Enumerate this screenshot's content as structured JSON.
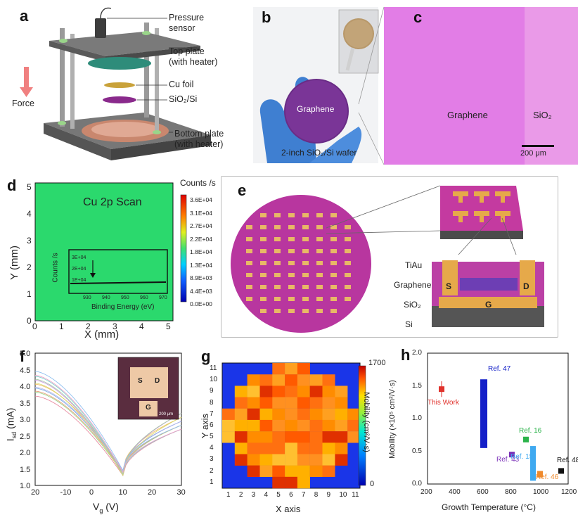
{
  "panel_letters": {
    "a": "a",
    "b": "b",
    "c": "c",
    "d": "d",
    "e": "e",
    "f": "f",
    "g": "g",
    "h": "h"
  },
  "panel_a": {
    "labels": {
      "pressure_sensor_1": "Pressure",
      "pressure_sensor_2": "sensor",
      "top_plate_1": "Top plate",
      "top_plate_2": "(with heater)",
      "cu_foil": "Cu foil",
      "sio2_si": "SiO₂/Si",
      "bottom_plate_1": "Bottom plate",
      "bottom_plate_2": "(with heater)",
      "force": "Force"
    }
  },
  "panel_b": {
    "graphene_label": "Graphene",
    "wafer_label": "2-inch SiO₂/Si wafer"
  },
  "panel_c": {
    "graphene_label": "Graphene",
    "sio2_label": "SiO₂",
    "scalebar": "200 μm"
  },
  "panel_d": {
    "title": "Cu 2p Scan",
    "xlabel": "X (mm)",
    "ylabel": "Y (mm)",
    "x_ticks": [
      "0",
      "1",
      "2",
      "3",
      "4",
      "5"
    ],
    "y_ticks": [
      "0",
      "1",
      "2",
      "3",
      "4",
      "5"
    ],
    "colorbar_title": "Counts /s",
    "colorbar_ticks": [
      "3.6E+04",
      "3.1E+04",
      "2.7E+04",
      "2.2E+04",
      "1.8E+04",
      "1.3E+04",
      "8.9E+03",
      "4.4E+03",
      "0.0E+00"
    ],
    "inset": {
      "ylabel": "Counts /s",
      "xlabel": "Binding Energy (eV)",
      "y_ticks": [
        "3E+04",
        "2E+04",
        "1E+04"
      ],
      "x_ticks": [
        "930",
        "940",
        "950",
        "960",
        "970"
      ]
    },
    "colors": {
      "map": "#2bd96d"
    }
  },
  "panel_e": {
    "labels": {
      "tiau": "TiAu",
      "graphene": "Graphene",
      "sio2": "SiO₂",
      "si": "Si",
      "s": "S",
      "d": "D",
      "g": "G"
    }
  },
  "panel_f": {
    "xlabel": "V₉ (V)",
    "ylabel": "Iₛₔ (mA)",
    "xlabel_main": "V",
    "xlabel_sub": "g",
    "xlabel_unit": " (V)",
    "ylabel_main": "I",
    "ylabel_sub": "sd",
    "ylabel_unit": " (mA)",
    "x_ticks": [
      "20",
      "-10",
      "0",
      "10",
      "20",
      "30"
    ],
    "y_ticks": [
      "5.0",
      "4.5",
      "4.0",
      "3.5",
      "3.0",
      "2.5",
      "2.0",
      "1.5",
      "1.0"
    ],
    "inset_labels": {
      "s": "S",
      "d": "D",
      "g": "G",
      "scale": "200 μm"
    }
  },
  "panel_g": {
    "xlabel": "X axis",
    "ylabel": "Y axis",
    "x_ticks": [
      "1",
      "2",
      "3",
      "4",
      "5",
      "6",
      "7",
      "8",
      "9",
      "10",
      "11"
    ],
    "y_ticks": [
      "11",
      "10",
      "9",
      "8",
      "7",
      "6",
      "5",
      "4",
      "3",
      "2",
      "1"
    ],
    "colorbar_title": "Mobility (cm²/V·s)",
    "colorbar_top": "1700",
    "colorbar_bottom": "0"
  },
  "chart_data": {
    "type": "scatter",
    "xlabel": "Growth Temperature (°C)",
    "ylabel": "Mobility (×10⁵ cm²/V·s)",
    "xlim": [
      200,
      1200
    ],
    "ylim": [
      0,
      2.0
    ],
    "x_ticks": [
      "200",
      "400",
      "600",
      "800",
      "1000",
      "1200"
    ],
    "y_ticks": [
      "0.0",
      "0.5",
      "1.0",
      "1.5",
      "2.0"
    ],
    "points": [
      {
        "name": "This Work",
        "x": 300,
        "y": 1.45,
        "err": 0.12,
        "color": "#e0322c",
        "kind": "point"
      },
      {
        "name": "Ref. 47",
        "x": 600,
        "y_min": 0.55,
        "y_max": 1.6,
        "color": "#1420c8",
        "kind": "range"
      },
      {
        "name": "Ref. 43",
        "x": 800,
        "y": 0.45,
        "color": "#7a2fb8",
        "kind": "point"
      },
      {
        "name": "Ref. 16",
        "x": 900,
        "y": 0.68,
        "color": "#2bb34a",
        "kind": "point"
      },
      {
        "name": "Ref. 15",
        "x": 950,
        "y_min": 0.05,
        "y_max": 0.58,
        "color": "#3fa9f0",
        "kind": "range"
      },
      {
        "name": "Ref. 46",
        "x": 1000,
        "y_min": 0.1,
        "y_max": 0.2,
        "color": "#f08a2c",
        "kind": "range"
      },
      {
        "name": "Ref. 48",
        "x": 1150,
        "y": 0.2,
        "color": "#111111",
        "kind": "point"
      }
    ]
  }
}
